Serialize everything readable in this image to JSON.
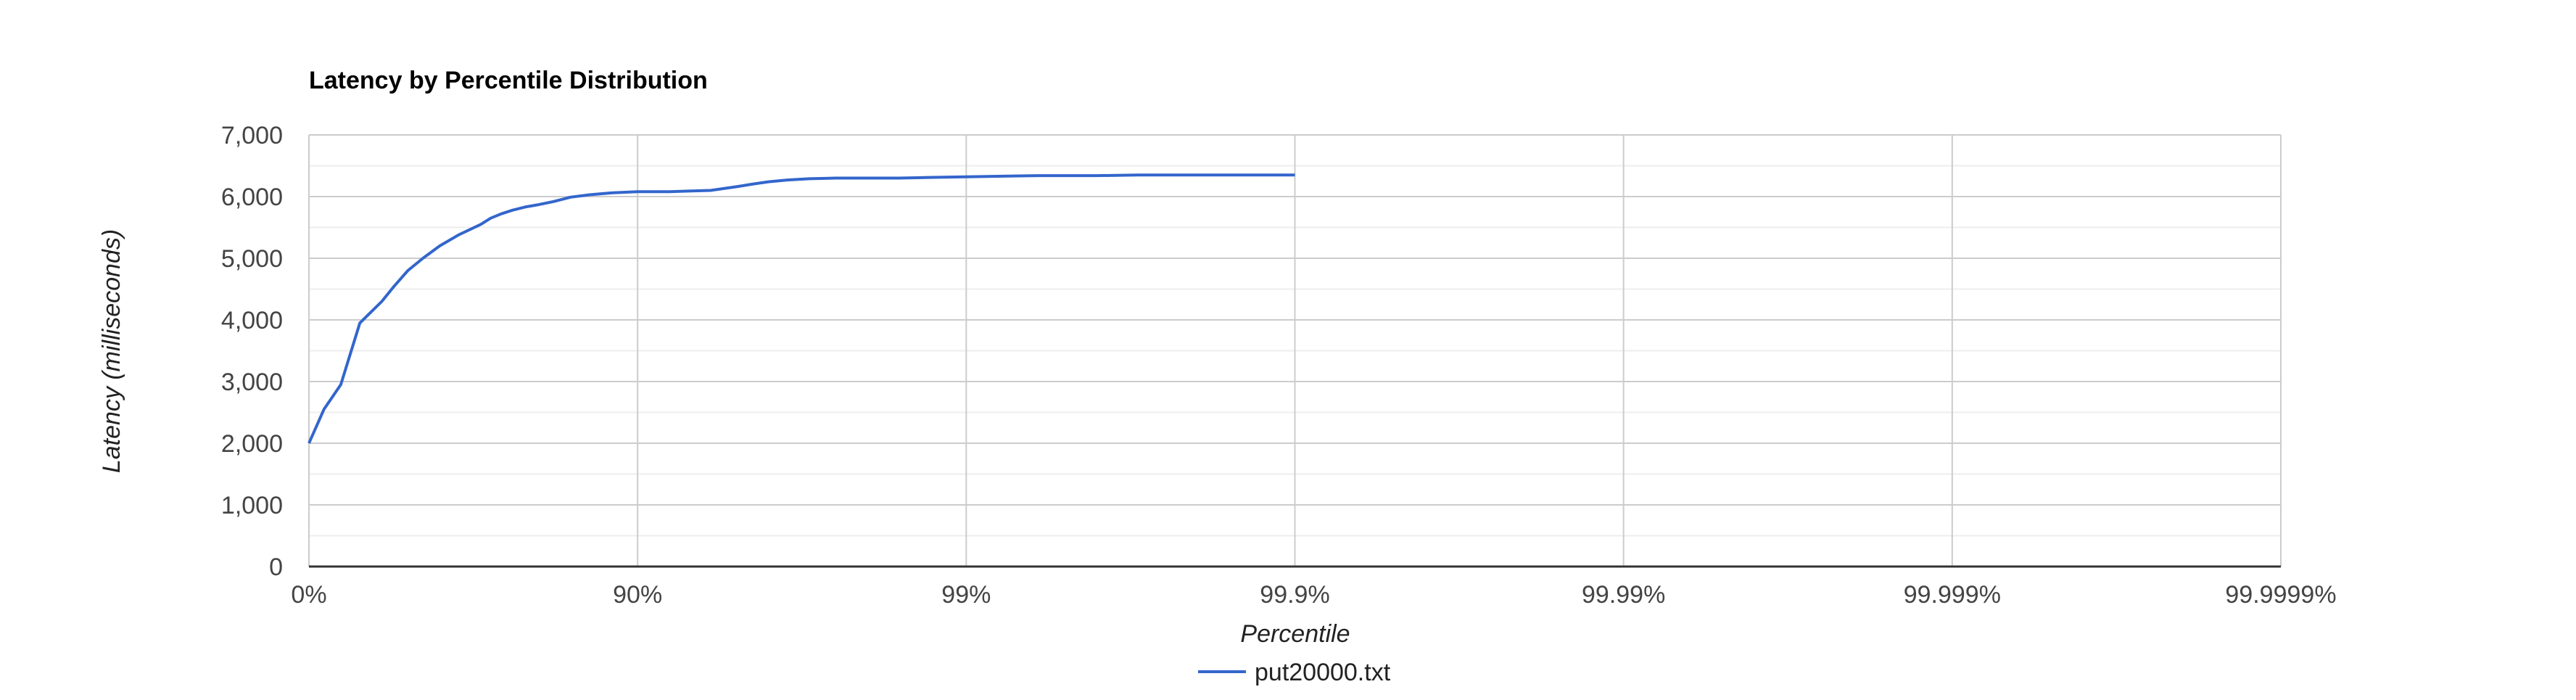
{
  "chart_data": {
    "type": "line",
    "title": "Latency by Percentile Distribution",
    "xlabel": "Percentile",
    "ylabel": "Latency (milliseconds)",
    "x_scale": "log-complement percentile",
    "x_tick_labels": [
      "0%",
      "90%",
      "99%",
      "99.9%",
      "99.99%",
      "99.999%",
      "99.9999%"
    ],
    "ylim": [
      0,
      7000
    ],
    "y_ticks": [
      0,
      1000,
      2000,
      3000,
      4000,
      5000,
      6000,
      7000
    ],
    "y_tick_labels": [
      "0",
      "1,000",
      "2,000",
      "3,000",
      "4,000",
      "5,000",
      "6,000",
      "7,000"
    ],
    "grid": true,
    "legend_position": "bottom",
    "series": [
      {
        "name": "put20000.txt",
        "color": "#3366cc",
        "x_percentile": [
          0,
          10,
          20,
          30,
          40,
          45,
          50,
          55,
          60,
          65,
          70,
          72,
          74,
          76,
          78,
          80,
          82,
          84,
          86,
          88,
          90,
          92,
          93,
          94,
          95,
          95.5,
          96,
          96.5,
          97,
          97.5,
          98,
          98.4,
          98.7,
          99,
          99.2,
          99.4,
          99.5,
          99.6,
          99.7,
          99.75,
          99.8,
          99.85,
          99.9
        ],
        "y": [
          2000,
          2550,
          2950,
          3950,
          4300,
          4550,
          4800,
          5000,
          5200,
          5380,
          5550,
          5650,
          5720,
          5780,
          5830,
          5870,
          5920,
          5990,
          6030,
          6060,
          6080,
          6080,
          6090,
          6100,
          6160,
          6200,
          6240,
          6270,
          6290,
          6300,
          6300,
          6300,
          6310,
          6320,
          6330,
          6340,
          6340,
          6340,
          6350,
          6350,
          6350,
          6350,
          6350
        ]
      }
    ]
  }
}
